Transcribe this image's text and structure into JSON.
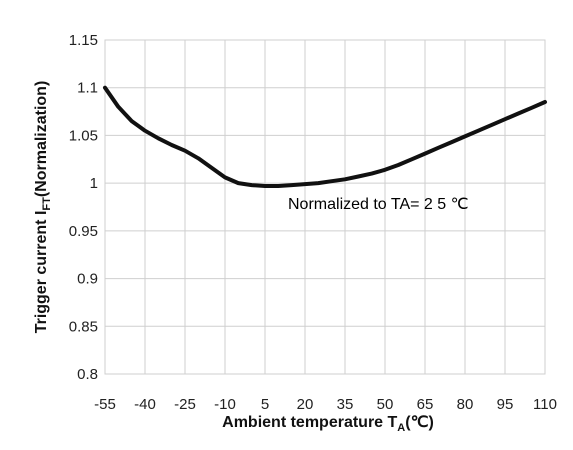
{
  "chart_data": {
    "type": "line",
    "xlabel": "Ambient temperature",
    "xlabel_sub": "A",
    "xlabel_unit": "(℃)",
    "ylabel": "Trigger current I",
    "ylabel_sub": "FT",
    "ylabel_suffix": "(Normalization)",
    "annotation": "Normalized to TA= 2 5 ℃",
    "x_ticks": [
      -55,
      -40,
      -25,
      -10,
      5,
      20,
      35,
      50,
      65,
      80,
      95,
      110
    ],
    "y_ticks": [
      "0.8",
      "0.85",
      "0.9",
      "0.95",
      "1",
      "1.05",
      "1.1",
      "1.15"
    ],
    "xlim": [
      -55,
      110
    ],
    "ylim": [
      0.8,
      1.15
    ],
    "grid": true,
    "series": [
      {
        "x": [
          -55,
          -50,
          -45,
          -40,
          -35,
          -30,
          -25,
          -20,
          -15,
          -10,
          -5,
          0,
          5,
          10,
          15,
          20,
          25,
          30,
          35,
          40,
          45,
          50,
          55,
          60,
          65,
          70,
          75,
          80,
          85,
          90,
          95,
          100,
          105,
          110
        ],
        "y": [
          1.1,
          1.08,
          1.065,
          1.055,
          1.047,
          1.04,
          1.034,
          1.026,
          1.016,
          1.006,
          1.0,
          0.998,
          0.997,
          0.997,
          0.998,
          0.999,
          1.0,
          1.002,
          1.004,
          1.007,
          1.01,
          1.014,
          1.019,
          1.025,
          1.031,
          1.037,
          1.043,
          1.049,
          1.055,
          1.061,
          1.067,
          1.073,
          1.079,
          1.085
        ]
      }
    ]
  }
}
